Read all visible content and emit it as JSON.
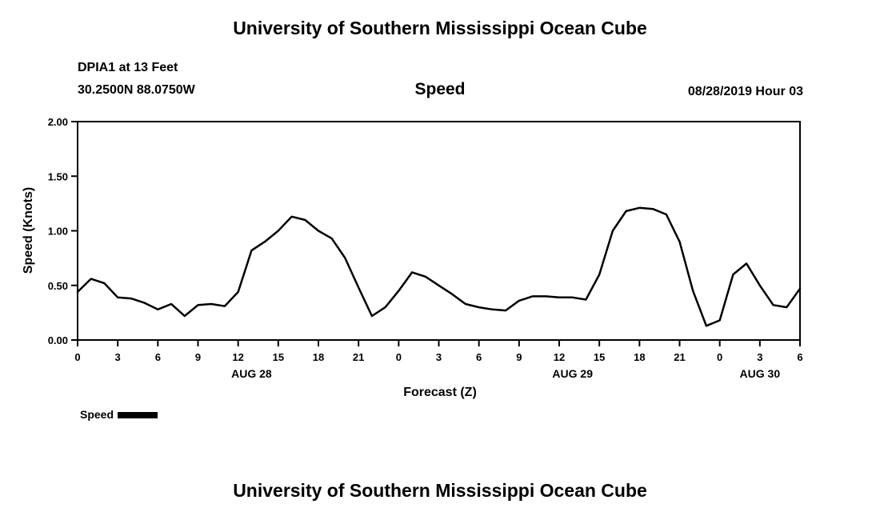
{
  "page": {
    "top_title": "University of Southern Mississippi Ocean Cube",
    "bottom_title": "University of Southern Mississippi Ocean Cube"
  },
  "header": {
    "station": "DPIA1 at 13 Feet",
    "coordinates": "30.2500N 88.0750W",
    "plot_title": "Speed",
    "datetime": "08/28/2019 Hour 03"
  },
  "legend": {
    "label": "Speed",
    "swatch_color": "#000000"
  },
  "chart_data": {
    "type": "line",
    "title": "Speed",
    "xlabel": "Forecast (Z)",
    "ylabel": "Speed (Knots)",
    "xlim": [
      0,
      54
    ],
    "ylim": [
      0.0,
      2.0
    ],
    "grid": false,
    "legend_position": "bottom-left",
    "line_color": "#000000",
    "y_ticks": [
      {
        "value": 0.0,
        "label": "0.00"
      },
      {
        "value": 0.5,
        "label": "0.50"
      },
      {
        "value": 1.0,
        "label": "1.00"
      },
      {
        "value": 1.5,
        "label": "1.50"
      },
      {
        "value": 2.0,
        "label": "2.00"
      }
    ],
    "x_ticks": [
      {
        "hour": 0,
        "label": "0"
      },
      {
        "hour": 3,
        "label": "3"
      },
      {
        "hour": 6,
        "label": "6"
      },
      {
        "hour": 9,
        "label": "9"
      },
      {
        "hour": 12,
        "label": "12"
      },
      {
        "hour": 15,
        "label": "15"
      },
      {
        "hour": 18,
        "label": "18"
      },
      {
        "hour": 21,
        "label": "21"
      },
      {
        "hour": 24,
        "label": "0"
      },
      {
        "hour": 27,
        "label": "3"
      },
      {
        "hour": 30,
        "label": "6"
      },
      {
        "hour": 33,
        "label": "9"
      },
      {
        "hour": 36,
        "label": "12"
      },
      {
        "hour": 39,
        "label": "15"
      },
      {
        "hour": 42,
        "label": "18"
      },
      {
        "hour": 45,
        "label": "21"
      },
      {
        "hour": 48,
        "label": "0"
      },
      {
        "hour": 51,
        "label": "3"
      },
      {
        "hour": 54,
        "label": "6"
      }
    ],
    "date_labels": [
      {
        "hour": 13,
        "label": "AUG 28"
      },
      {
        "hour": 37,
        "label": "AUG 29"
      },
      {
        "hour": 51,
        "label": "AUG 30"
      }
    ],
    "series": [
      {
        "name": "Speed",
        "color": "#000000",
        "x_start": 0,
        "x_step": 1,
        "values": [
          0.44,
          0.56,
          0.52,
          0.39,
          0.38,
          0.34,
          0.28,
          0.33,
          0.22,
          0.32,
          0.33,
          0.31,
          0.44,
          0.82,
          0.9,
          1.0,
          1.13,
          1.1,
          1.0,
          0.93,
          0.75,
          0.48,
          0.22,
          0.3,
          0.45,
          0.62,
          0.58,
          0.5,
          0.42,
          0.33,
          0.3,
          0.28,
          0.27,
          0.36,
          0.4,
          0.4,
          0.39,
          0.39,
          0.37,
          0.6,
          1.0,
          1.18,
          1.21,
          1.2,
          1.15,
          0.9,
          0.45,
          0.13,
          0.18,
          0.6,
          0.7,
          0.5,
          0.32,
          0.3,
          0.47
        ]
      }
    ]
  }
}
